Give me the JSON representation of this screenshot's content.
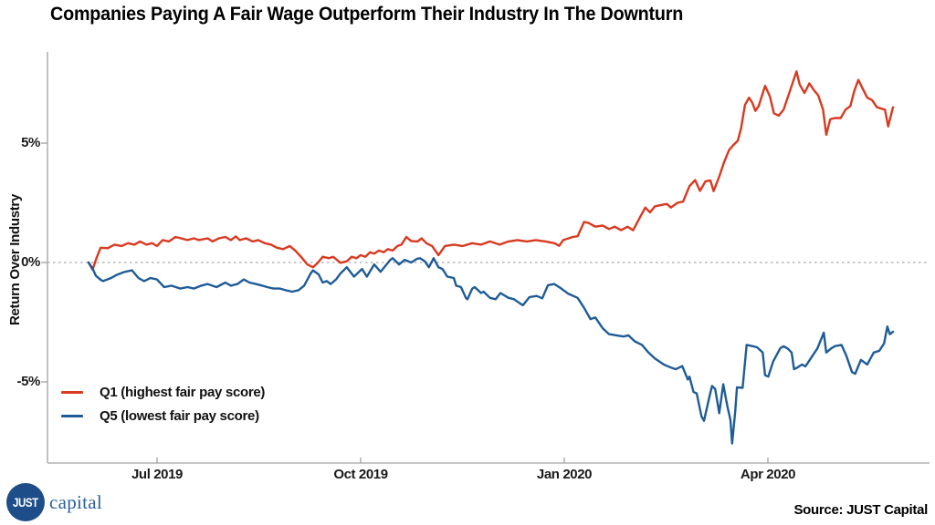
{
  "chart_data": {
    "type": "line",
    "title": "Companies Paying A Fair Wage Outperform Their Industry In The Downturn",
    "ylabel": "Return Over Industry",
    "y_ticks": [
      "5%",
      "0%",
      "-5%"
    ],
    "y_tick_values": [
      5,
      0,
      -5
    ],
    "x_ticks": [
      "Jul 2019",
      "Oct 2019",
      "Jan 2020",
      "Apr 2020"
    ],
    "x_range_label": "Jun 2019 to late May 2020",
    "ylim": [
      -8.6,
      8.6
    ],
    "grid": false,
    "zero_line_dashed": true,
    "legend_position": "inside bottom-left",
    "units": "percent",
    "series": [
      {
        "name": "Q1 (highest fair pay score)",
        "color": "#d9391f",
        "points": [
          [
            0.0,
            0.0
          ],
          [
            0.005,
            -0.3
          ],
          [
            0.01,
            0.2
          ],
          [
            0.015,
            0.62
          ],
          [
            0.024,
            0.6
          ],
          [
            0.032,
            0.75
          ],
          [
            0.041,
            0.69
          ],
          [
            0.049,
            0.81
          ],
          [
            0.057,
            0.75
          ],
          [
            0.064,
            0.88
          ],
          [
            0.072,
            0.75
          ],
          [
            0.079,
            0.81
          ],
          [
            0.085,
            0.69
          ],
          [
            0.092,
            0.94
          ],
          [
            0.1,
            0.88
          ],
          [
            0.108,
            1.07
          ],
          [
            0.115,
            1.01
          ],
          [
            0.123,
            0.94
          ],
          [
            0.131,
            1.01
          ],
          [
            0.137,
            0.94
          ],
          [
            0.148,
            1.01
          ],
          [
            0.154,
            0.88
          ],
          [
            0.162,
            1.01
          ],
          [
            0.17,
            1.07
          ],
          [
            0.177,
            0.94
          ],
          [
            0.183,
            1.09
          ],
          [
            0.188,
            0.94
          ],
          [
            0.196,
            1.01
          ],
          [
            0.204,
            0.88
          ],
          [
            0.211,
            0.94
          ],
          [
            0.219,
            0.81
          ],
          [
            0.227,
            0.75
          ],
          [
            0.234,
            0.62
          ],
          [
            0.242,
            0.56
          ],
          [
            0.25,
            0.69
          ],
          [
            0.257,
            0.5
          ],
          [
            0.264,
            0.24
          ],
          [
            0.272,
            -0.08
          ],
          [
            0.279,
            -0.2
          ],
          [
            0.285,
            -0.01
          ],
          [
            0.291,
            0.24
          ],
          [
            0.299,
            0.18
          ],
          [
            0.304,
            0.24
          ],
          [
            0.313,
            -0.01
          ],
          [
            0.321,
            0.05
          ],
          [
            0.327,
            0.24
          ],
          [
            0.333,
            0.18
          ],
          [
            0.338,
            0.31
          ],
          [
            0.344,
            0.24
          ],
          [
            0.35,
            0.43
          ],
          [
            0.355,
            0.37
          ],
          [
            0.361,
            0.5
          ],
          [
            0.367,
            0.43
          ],
          [
            0.372,
            0.56
          ],
          [
            0.378,
            0.5
          ],
          [
            0.384,
            0.69
          ],
          [
            0.389,
            0.75
          ],
          [
            0.395,
            1.07
          ],
          [
            0.401,
            0.9
          ],
          [
            0.409,
            0.88
          ],
          [
            0.414,
            1.01
          ],
          [
            0.42,
            0.81
          ],
          [
            0.427,
            0.69
          ],
          [
            0.435,
            0.31
          ],
          [
            0.443,
            0.69
          ],
          [
            0.454,
            0.75
          ],
          [
            0.465,
            0.69
          ],
          [
            0.477,
            0.81
          ],
          [
            0.488,
            0.75
          ],
          [
            0.499,
            0.88
          ],
          [
            0.511,
            0.75
          ],
          [
            0.522,
            0.88
          ],
          [
            0.533,
            0.94
          ],
          [
            0.545,
            0.88
          ],
          [
            0.556,
            0.94
          ],
          [
            0.568,
            0.88
          ],
          [
            0.579,
            0.81
          ],
          [
            0.585,
            0.7
          ],
          [
            0.59,
            0.94
          ],
          [
            0.602,
            1.07
          ],
          [
            0.608,
            1.1
          ],
          [
            0.616,
            1.7
          ],
          [
            0.622,
            1.65
          ],
          [
            0.63,
            1.5
          ],
          [
            0.639,
            1.55
          ],
          [
            0.647,
            1.4
          ],
          [
            0.654,
            1.5
          ],
          [
            0.662,
            1.35
          ],
          [
            0.67,
            1.5
          ],
          [
            0.677,
            1.35
          ],
          [
            0.684,
            1.8
          ],
          [
            0.692,
            2.3
          ],
          [
            0.698,
            2.1
          ],
          [
            0.704,
            2.35
          ],
          [
            0.711,
            2.4
          ],
          [
            0.719,
            2.45
          ],
          [
            0.724,
            2.3
          ],
          [
            0.732,
            2.5
          ],
          [
            0.739,
            2.55
          ],
          [
            0.747,
            3.2
          ],
          [
            0.754,
            3.45
          ],
          [
            0.76,
            3.0
          ],
          [
            0.767,
            3.4
          ],
          [
            0.773,
            3.44
          ],
          [
            0.777,
            2.99
          ],
          [
            0.784,
            3.6
          ],
          [
            0.79,
            4.2
          ],
          [
            0.796,
            4.7
          ],
          [
            0.801,
            4.9
          ],
          [
            0.807,
            5.1
          ],
          [
            0.811,
            5.6
          ],
          [
            0.816,
            6.6
          ],
          [
            0.821,
            6.9
          ],
          [
            0.825,
            6.7
          ],
          [
            0.829,
            6.35
          ],
          [
            0.833,
            6.55
          ],
          [
            0.841,
            7.4
          ],
          [
            0.847,
            6.95
          ],
          [
            0.852,
            6.25
          ],
          [
            0.858,
            6.15
          ],
          [
            0.864,
            6.4
          ],
          [
            0.869,
            6.9
          ],
          [
            0.875,
            7.5
          ],
          [
            0.88,
            8.0
          ],
          [
            0.884,
            7.45
          ],
          [
            0.89,
            7.1
          ],
          [
            0.896,
            7.5
          ],
          [
            0.901,
            7.25
          ],
          [
            0.907,
            7.0
          ],
          [
            0.913,
            6.4
          ],
          [
            0.917,
            5.35
          ],
          [
            0.922,
            6.0
          ],
          [
            0.928,
            6.05
          ],
          [
            0.935,
            6.05
          ],
          [
            0.941,
            6.4
          ],
          [
            0.947,
            6.55
          ],
          [
            0.952,
            7.2
          ],
          [
            0.957,
            7.65
          ],
          [
            0.962,
            7.3
          ],
          [
            0.968,
            6.9
          ],
          [
            0.974,
            6.8
          ],
          [
            0.98,
            6.5
          ],
          [
            0.985,
            6.45
          ],
          [
            0.99,
            6.4
          ],
          [
            0.994,
            5.7
          ],
          [
            1.0,
            6.5
          ]
        ]
      },
      {
        "name": "Q5 (lowest fair pay score)",
        "color": "#1f5c97",
        "points": [
          [
            0.0,
            0.0
          ],
          [
            0.005,
            -0.25
          ],
          [
            0.009,
            -0.55
          ],
          [
            0.015,
            -0.72
          ],
          [
            0.018,
            -0.78
          ],
          [
            0.028,
            -0.65
          ],
          [
            0.035,
            -0.52
          ],
          [
            0.044,
            -0.4
          ],
          [
            0.054,
            -0.33
          ],
          [
            0.062,
            -0.65
          ],
          [
            0.069,
            -0.78
          ],
          [
            0.077,
            -0.65
          ],
          [
            0.085,
            -0.71
          ],
          [
            0.094,
            -1.03
          ],
          [
            0.103,
            -0.97
          ],
          [
            0.114,
            -1.09
          ],
          [
            0.123,
            -1.03
          ],
          [
            0.131,
            -1.09
          ],
          [
            0.14,
            -0.97
          ],
          [
            0.148,
            -0.9
          ],
          [
            0.159,
            -1.03
          ],
          [
            0.17,
            -0.84
          ],
          [
            0.177,
            -0.97
          ],
          [
            0.185,
            -0.9
          ],
          [
            0.193,
            -0.71
          ],
          [
            0.2,
            -0.84
          ],
          [
            0.208,
            -0.9
          ],
          [
            0.216,
            -0.97
          ],
          [
            0.222,
            -1.03
          ],
          [
            0.23,
            -1.09
          ],
          [
            0.238,
            -1.09
          ],
          [
            0.245,
            -1.16
          ],
          [
            0.253,
            -1.22
          ],
          [
            0.261,
            -1.16
          ],
          [
            0.268,
            -0.97
          ],
          [
            0.276,
            -0.46
          ],
          [
            0.279,
            -0.33
          ],
          [
            0.286,
            -0.5
          ],
          [
            0.291,
            -0.84
          ],
          [
            0.296,
            -0.78
          ],
          [
            0.301,
            -0.9
          ],
          [
            0.308,
            -0.7
          ],
          [
            0.313,
            -0.46
          ],
          [
            0.321,
            -0.2
          ],
          [
            0.33,
            -0.59
          ],
          [
            0.34,
            -0.27
          ],
          [
            0.346,
            -0.59
          ],
          [
            0.355,
            -0.08
          ],
          [
            0.363,
            -0.39
          ],
          [
            0.375,
            0.11
          ],
          [
            0.378,
            0.18
          ],
          [
            0.386,
            -0.08
          ],
          [
            0.393,
            0.11
          ],
          [
            0.401,
            0.0
          ],
          [
            0.408,
            0.15
          ],
          [
            0.412,
            0.18
          ],
          [
            0.418,
            0.05
          ],
          [
            0.423,
            -0.2
          ],
          [
            0.429,
            0.18
          ],
          [
            0.435,
            -0.2
          ],
          [
            0.44,
            -0.27
          ],
          [
            0.446,
            -0.59
          ],
          [
            0.454,
            -0.65
          ],
          [
            0.457,
            -0.97
          ],
          [
            0.463,
            -1.03
          ],
          [
            0.469,
            -1.48
          ],
          [
            0.471,
            -1.54
          ],
          [
            0.477,
            -1.09
          ],
          [
            0.48,
            -1.03
          ],
          [
            0.488,
            -1.28
          ],
          [
            0.491,
            -1.22
          ],
          [
            0.499,
            -1.48
          ],
          [
            0.506,
            -1.54
          ],
          [
            0.512,
            -1.28
          ],
          [
            0.522,
            -1.48
          ],
          [
            0.529,
            -1.54
          ],
          [
            0.537,
            -1.73
          ],
          [
            0.54,
            -1.79
          ],
          [
            0.548,
            -1.45
          ],
          [
            0.557,
            -1.4
          ],
          [
            0.564,
            -1.5
          ],
          [
            0.571,
            -0.95
          ],
          [
            0.579,
            -0.9
          ],
          [
            0.588,
            -1.1
          ],
          [
            0.596,
            -1.3
          ],
          [
            0.608,
            -1.48
          ],
          [
            0.616,
            -1.9
          ],
          [
            0.624,
            -2.37
          ],
          [
            0.63,
            -2.3
          ],
          [
            0.639,
            -2.75
          ],
          [
            0.647,
            -3.0
          ],
          [
            0.656,
            -3.05
          ],
          [
            0.665,
            -3.1
          ],
          [
            0.671,
            -3.05
          ],
          [
            0.679,
            -3.3
          ],
          [
            0.688,
            -3.45
          ],
          [
            0.696,
            -3.77
          ],
          [
            0.704,
            -4.02
          ],
          [
            0.715,
            -4.27
          ],
          [
            0.724,
            -4.4
          ],
          [
            0.73,
            -4.47
          ],
          [
            0.738,
            -4.34
          ],
          [
            0.745,
            -4.9
          ],
          [
            0.747,
            -4.78
          ],
          [
            0.752,
            -5.42
          ],
          [
            0.756,
            -5.48
          ],
          [
            0.762,
            -6.45
          ],
          [
            0.765,
            -6.63
          ],
          [
            0.772,
            -5.6
          ],
          [
            0.775,
            -5.17
          ],
          [
            0.779,
            -5.3
          ],
          [
            0.784,
            -6.31
          ],
          [
            0.789,
            -5.1
          ],
          [
            0.794,
            -6.0
          ],
          [
            0.798,
            -6.6
          ],
          [
            0.8,
            -7.58
          ],
          [
            0.804,
            -6.2
          ],
          [
            0.806,
            -5.23
          ],
          [
            0.813,
            -5.25
          ],
          [
            0.818,
            -3.45
          ],
          [
            0.825,
            -3.5
          ],
          [
            0.831,
            -3.55
          ],
          [
            0.838,
            -3.77
          ],
          [
            0.841,
            -4.72
          ],
          [
            0.845,
            -4.78
          ],
          [
            0.851,
            -4.15
          ],
          [
            0.86,
            -3.58
          ],
          [
            0.864,
            -3.51
          ],
          [
            0.869,
            -3.6
          ],
          [
            0.874,
            -3.77
          ],
          [
            0.877,
            -4.47
          ],
          [
            0.881,
            -4.4
          ],
          [
            0.887,
            -4.27
          ],
          [
            0.891,
            -4.35
          ],
          [
            0.894,
            -4.21
          ],
          [
            0.9,
            -3.9
          ],
          [
            0.906,
            -3.6
          ],
          [
            0.914,
            -2.94
          ],
          [
            0.917,
            -3.77
          ],
          [
            0.923,
            -3.6
          ],
          [
            0.928,
            -3.5
          ],
          [
            0.936,
            -3.45
          ],
          [
            0.942,
            -3.9
          ],
          [
            0.949,
            -4.59
          ],
          [
            0.953,
            -4.66
          ],
          [
            0.96,
            -4.08
          ],
          [
            0.968,
            -4.27
          ],
          [
            0.976,
            -3.77
          ],
          [
            0.983,
            -3.7
          ],
          [
            0.989,
            -3.38
          ],
          [
            0.993,
            -2.68
          ],
          [
            0.996,
            -3.0
          ],
          [
            1.0,
            -2.9
          ]
        ]
      }
    ]
  },
  "footer": {
    "logo": {
      "circle_text": "JUST",
      "wordmark": "capital",
      "circle_color": "#1d4e89"
    },
    "source": "Source: JUST Capital"
  }
}
